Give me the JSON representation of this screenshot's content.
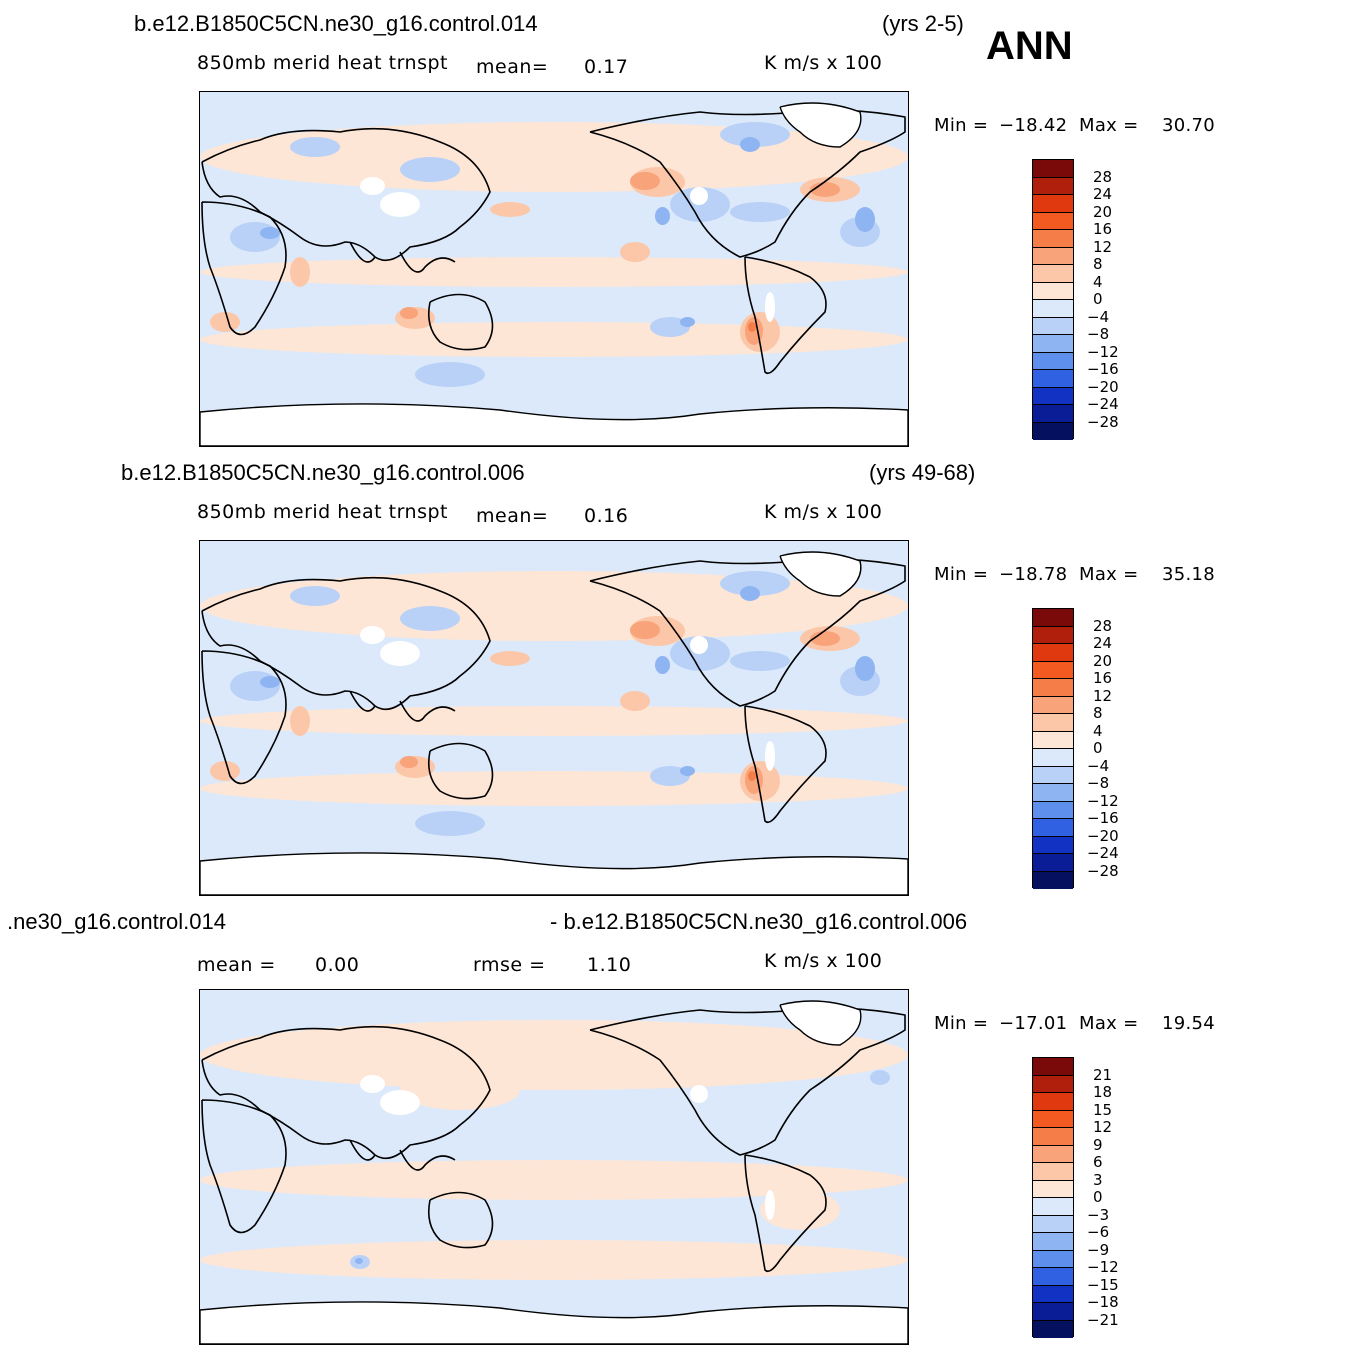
{
  "season": "ANN",
  "panels": [
    {
      "case_title": "b.e12.B1850C5CN.ne30_g16.control.014",
      "years": "(yrs 2-5)",
      "variable": "850mb  merid  heat  trnspt",
      "stat1_label": "mean=",
      "stat1_value": "0.17",
      "stat2_label": "",
      "stat2_value": "",
      "units": "K  m/s  x  100",
      "min_label": "Min  =",
      "min_value": "−18.42",
      "max_label": "Max  =",
      "max_value": "30.70",
      "colorbar_labels": [
        "28",
        "24",
        "20",
        "16",
        "12",
        "8",
        "4",
        "0",
        "−4",
        "−8",
        "−12",
        "−16",
        "−20",
        "−24",
        "−28"
      ]
    },
    {
      "case_title": "b.e12.B1850C5CN.ne30_g16.control.006",
      "years": "(yrs 49-68)",
      "variable": "850mb  merid  heat  trnspt",
      "stat1_label": "mean=",
      "stat1_value": "0.16",
      "stat2_label": "",
      "stat2_value": "",
      "units": "K  m/s  x  100",
      "min_label": "Min  =",
      "min_value": "−18.78",
      "max_label": "Max  =",
      "max_value": "35.18",
      "colorbar_labels": [
        "28",
        "24",
        "20",
        "16",
        "12",
        "8",
        "4",
        "0",
        "−4",
        "−8",
        "−12",
        "−16",
        "−20",
        "−24",
        "−28"
      ]
    },
    {
      "case_title": ".ne30_g16.control.014",
      "case_title2": "- b.e12.B1850C5CN.ne30_g16.control.006",
      "years": "",
      "variable": "",
      "stat1_label": "mean  =",
      "stat1_value": "0.00",
      "stat2_label": "rmse  =",
      "stat2_value": "1.10",
      "units": "K  m/s  x  100",
      "min_label": "Min  =",
      "min_value": "−17.01",
      "max_label": "Max  =",
      "max_value": "19.54",
      "colorbar_labels": [
        "21",
        "18",
        "15",
        "12",
        "9",
        "6",
        "3",
        "0",
        "−3",
        "−6",
        "−9",
        "−12",
        "−15",
        "−18",
        "−21"
      ]
    }
  ],
  "colors": {
    "palette": [
      "#7a0a0a",
      "#b01e0c",
      "#e0380f",
      "#f25a22",
      "#f57e48",
      "#f8a37a",
      "#fbc7a8",
      "#fde6d6",
      "#dbe9fb",
      "#b9d1f7",
      "#8eb4f2",
      "#5f8fec",
      "#2f61e2",
      "#1232c4",
      "#0a1c96",
      "#05105f"
    ],
    "land_empty": "#ffffff",
    "coast": "#000000"
  }
}
